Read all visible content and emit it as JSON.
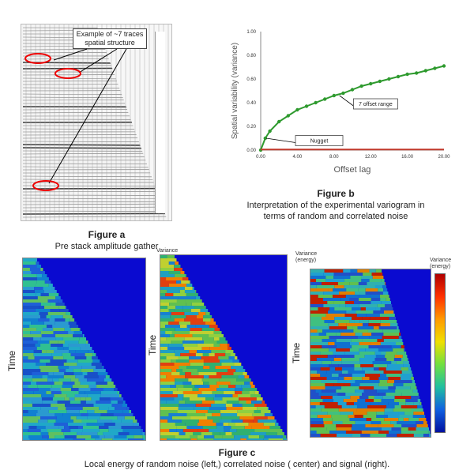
{
  "figure_a": {
    "callout": "Example of ~7 traces spatial structure",
    "title": "Figure a",
    "subtitle": "Pre stack amplitude gather"
  },
  "figure_b": {
    "title": "Figure b",
    "caption_line1": "Interpretation  of the experimental variogram in",
    "caption_line2": "terms of random  and correlated noise"
  },
  "figure_c": {
    "title": "Figure c",
    "caption": "Local energy of random noise (left,) correlated noise ( center) and signal (right).",
    "time_label": "Time",
    "variance_label_1": "Variance",
    "variance_label_2": "Variance (energy)",
    "variance_label_3": "Variance (energy)"
  },
  "chart_data": {
    "type": "line",
    "xlabel": "Offset lag",
    "ylabel": "Spatial variability (variance)",
    "xlim": [
      0,
      20
    ],
    "ylim": [
      0,
      1
    ],
    "xticks": [
      "0.00",
      "4.00",
      "8.00",
      "12.00",
      "16.00",
      "20.00"
    ],
    "yticks": [
      "0.00",
      "0.20",
      "0.40",
      "0.60",
      "0.80",
      "1.00"
    ],
    "series": [
      {
        "name": "",
        "color": "#2e9a2e",
        "x": [
          0,
          0.5,
          1,
          2,
          3,
          4,
          5,
          6,
          7,
          8,
          9,
          10,
          11,
          12,
          13,
          14,
          15,
          16,
          17,
          18,
          19,
          20
        ],
        "y": [
          0.0,
          0.1,
          0.16,
          0.24,
          0.29,
          0.34,
          0.37,
          0.4,
          0.43,
          0.46,
          0.48,
          0.51,
          0.54,
          0.56,
          0.58,
          0.6,
          0.62,
          0.64,
          0.65,
          0.67,
          0.69,
          0.71
        ]
      },
      {
        "name": "",
        "color": "#c0392b",
        "x": [
          0,
          20
        ],
        "y": [
          0.005,
          0.005
        ]
      }
    ],
    "annotations": [
      {
        "text": "7 offset range",
        "x": 11.5,
        "y": 0.38
      },
      {
        "text": "Nugget",
        "x": 5.0,
        "y": 0.07
      }
    ],
    "grid": false
  }
}
